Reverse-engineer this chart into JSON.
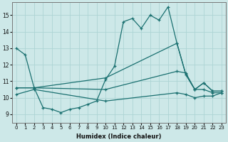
{
  "xlabel": "Humidex (Indice chaleur)",
  "xlim": [
    -0.5,
    23.5
  ],
  "ylim": [
    8.5,
    15.8
  ],
  "yticks": [
    9,
    10,
    11,
    12,
    13,
    14,
    15
  ],
  "xticks": [
    0,
    1,
    2,
    3,
    4,
    5,
    6,
    7,
    8,
    9,
    10,
    11,
    12,
    13,
    14,
    15,
    16,
    17,
    18,
    19,
    20,
    21,
    22,
    23
  ],
  "bg_color": "#cde8e8",
  "grid_color": "#add4d4",
  "line_color": "#1a7070",
  "line1_x": [
    0,
    1,
    2,
    3,
    4,
    5,
    6,
    7,
    8,
    9,
    10,
    11,
    12,
    13,
    14,
    15,
    16,
    17,
    18,
    19,
    20,
    21,
    22,
    23
  ],
  "line1_y": [
    13.0,
    12.6,
    10.6,
    9.4,
    9.3,
    9.1,
    9.3,
    9.4,
    9.6,
    9.8,
    11.1,
    11.9,
    14.6,
    14.8,
    14.2,
    15.0,
    14.7,
    15.5,
    13.3,
    11.4,
    10.5,
    10.9,
    10.4,
    10.4
  ],
  "line2_x": [
    0,
    2,
    10,
    18,
    19,
    20,
    21,
    22,
    23
  ],
  "line2_y": [
    10.6,
    10.6,
    11.2,
    13.3,
    11.4,
    10.5,
    10.9,
    10.4,
    10.4
  ],
  "line3_x": [
    0,
    2,
    10,
    18,
    19,
    20,
    21,
    22,
    23
  ],
  "line3_y": [
    10.6,
    10.6,
    10.5,
    11.6,
    11.5,
    10.5,
    10.5,
    10.3,
    10.3
  ],
  "line4_x": [
    0,
    2,
    10,
    18,
    19,
    20,
    21,
    22,
    23
  ],
  "line4_y": [
    10.2,
    10.5,
    9.8,
    10.3,
    10.2,
    10.0,
    10.1,
    10.1,
    10.3
  ]
}
